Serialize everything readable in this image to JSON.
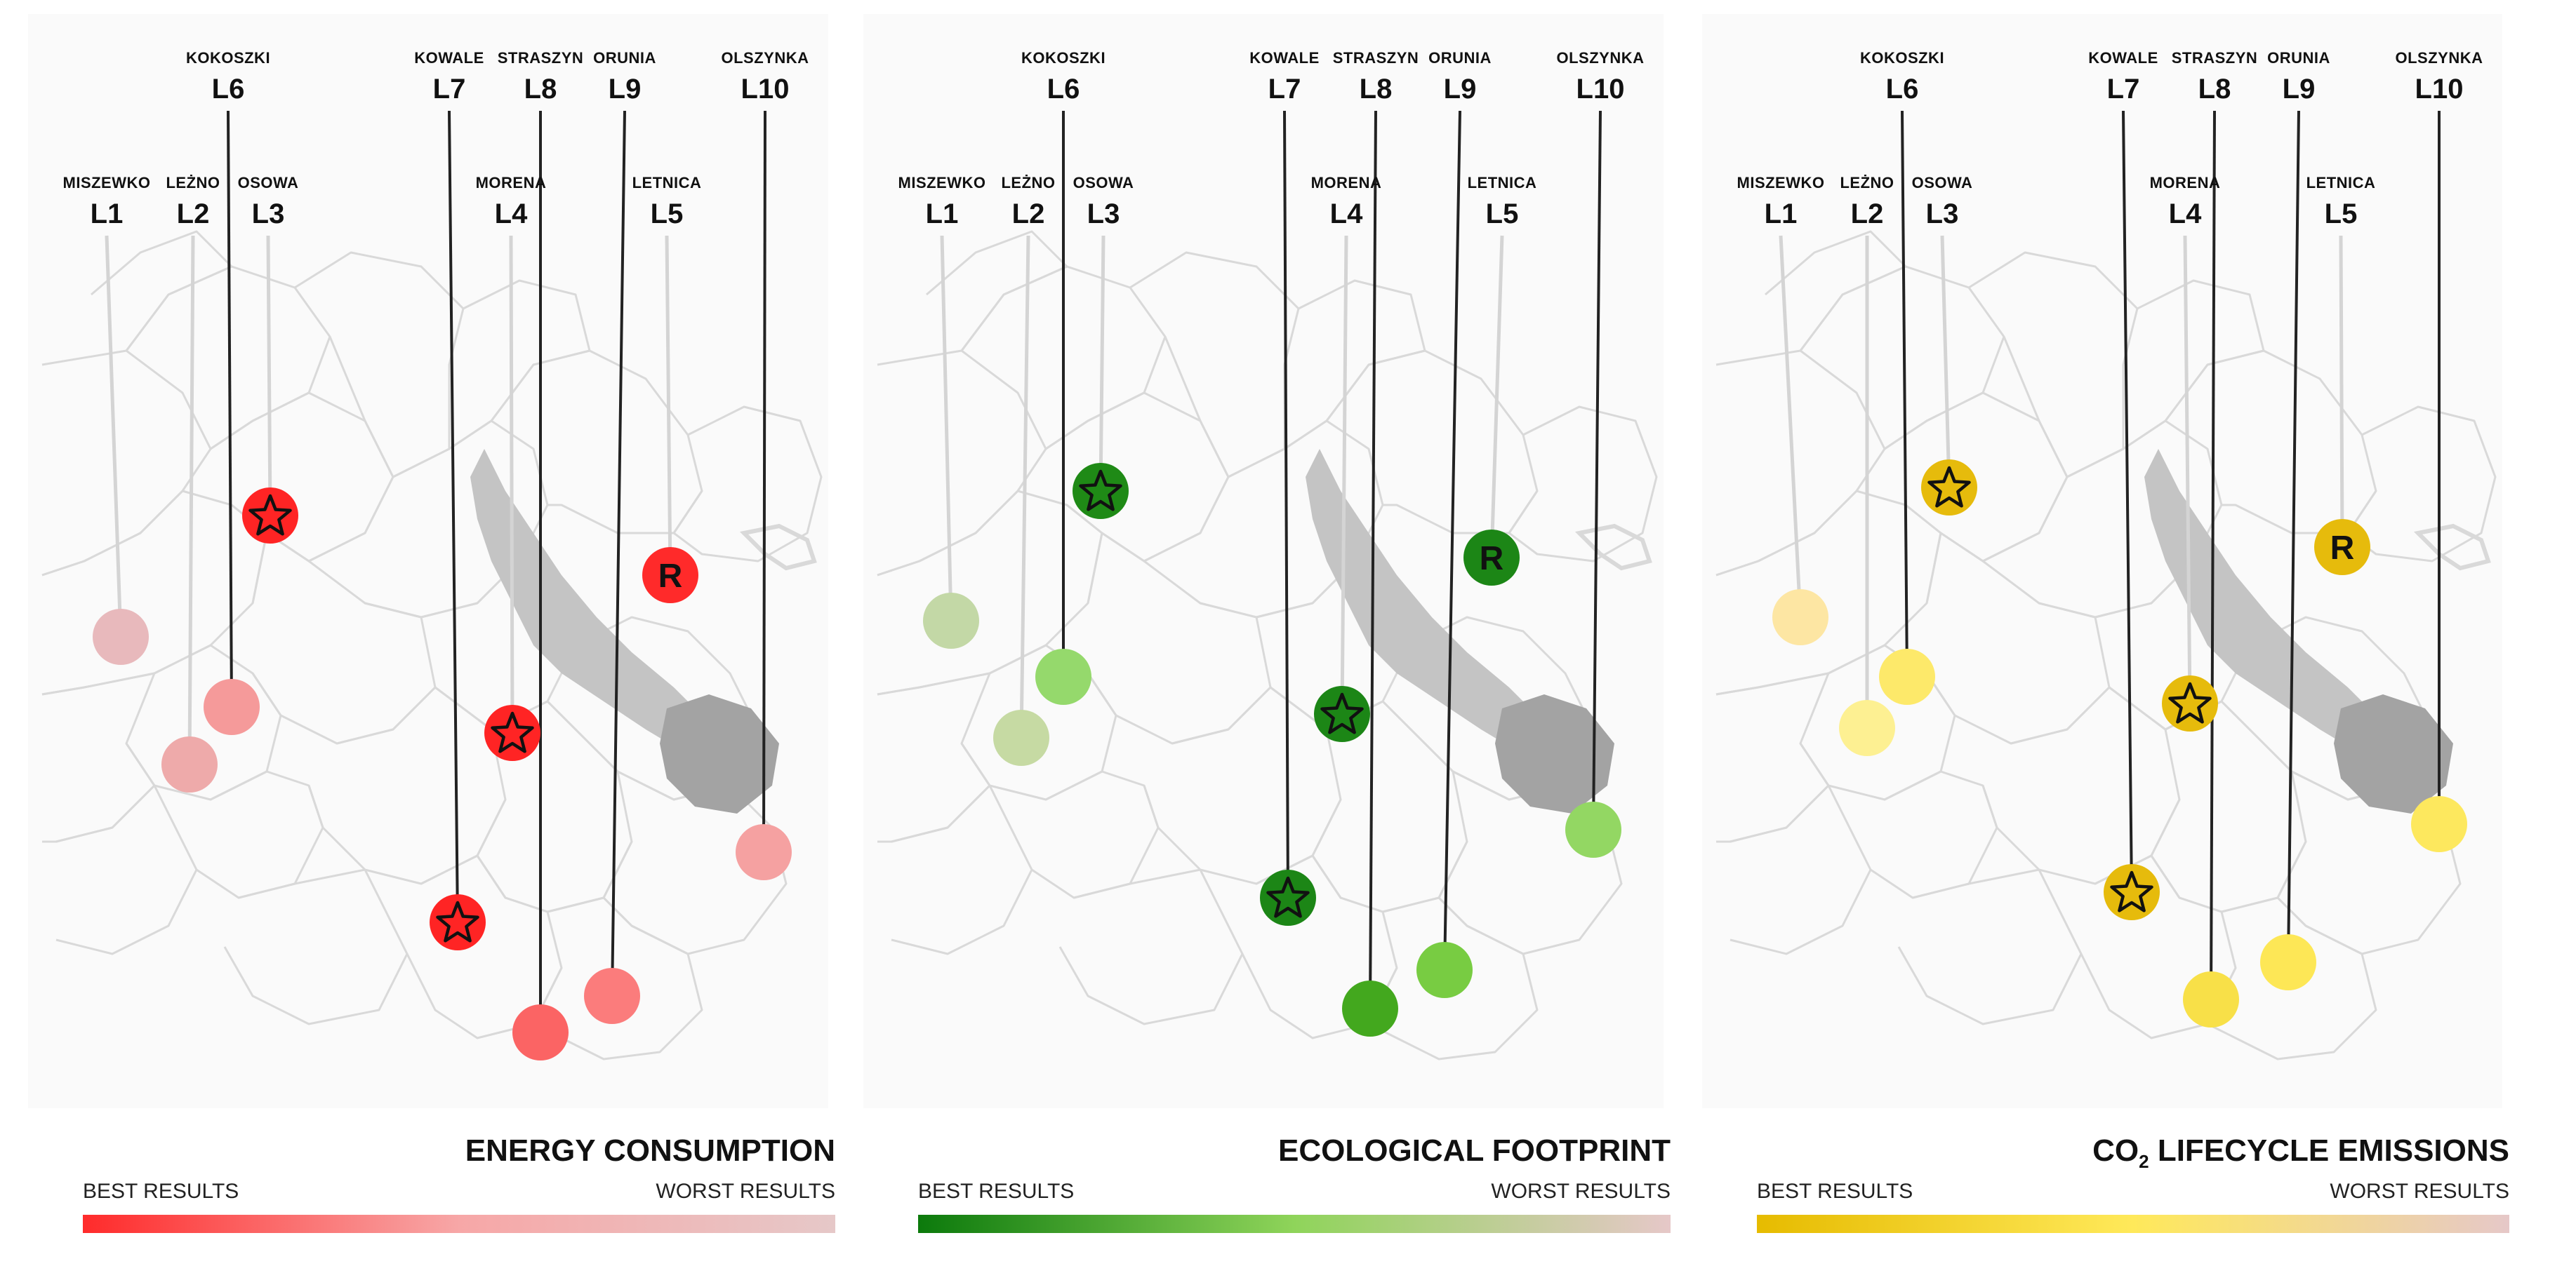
{
  "panels": [
    {
      "id": "energy",
      "title": "ENERGY CONSUMPTION",
      "title_sub": "",
      "title_rest": "",
      "best_label": "BEST RESULTS",
      "worst_label": "WORST RESULTS",
      "gradient": [
        "#ff2b2b",
        "#f7a7a7",
        "#e6c8c8"
      ],
      "markers": [
        {
          "loc": "L1",
          "color": "#e8b9bc",
          "star": false,
          "letter": ""
        },
        {
          "loc": "L2",
          "color": "#eeaaaa",
          "star": false,
          "letter": ""
        },
        {
          "loc": "L3",
          "color": "#ff2424",
          "star": true,
          "letter": ""
        },
        {
          "loc": "L4",
          "color": "#ff2424",
          "star": true,
          "letter": ""
        },
        {
          "loc": "L5",
          "color": "#ff2a2a",
          "star": false,
          "letter": "R"
        },
        {
          "loc": "L6",
          "color": "#f59a9a",
          "star": false,
          "letter": ""
        },
        {
          "loc": "L7",
          "color": "#ff2424",
          "star": true,
          "letter": ""
        },
        {
          "loc": "L8",
          "color": "#fb6464",
          "star": false,
          "letter": ""
        },
        {
          "loc": "L9",
          "color": "#fb7c7c",
          "star": false,
          "letter": ""
        },
        {
          "loc": "L10",
          "color": "#f5a1a1",
          "star": false,
          "letter": ""
        }
      ]
    },
    {
      "id": "ecological",
      "title": "ECOLOGICAL FOOTPRINT",
      "title_sub": "",
      "title_rest": "",
      "best_label": "BEST RESULTS",
      "worst_label": "WORST RESULTS",
      "gradient": [
        "#0c7a0c",
        "#8fd45a",
        "#e6c8c8"
      ],
      "markers": [
        {
          "loc": "L1",
          "color": "#c3d8a6",
          "star": false,
          "letter": ""
        },
        {
          "loc": "L2",
          "color": "#c6daa3",
          "star": false,
          "letter": ""
        },
        {
          "loc": "L3",
          "color": "#1f8a16",
          "star": true,
          "letter": ""
        },
        {
          "loc": "L4",
          "color": "#1c8616",
          "star": true,
          "letter": ""
        },
        {
          "loc": "L5",
          "color": "#1c8616",
          "star": false,
          "letter": "R"
        },
        {
          "loc": "L6",
          "color": "#95d96c",
          "star": false,
          "letter": ""
        },
        {
          "loc": "L7",
          "color": "#1c8616",
          "star": true,
          "letter": ""
        },
        {
          "loc": "L8",
          "color": "#43a81e",
          "star": false,
          "letter": ""
        },
        {
          "loc": "L9",
          "color": "#78cc42",
          "star": false,
          "letter": ""
        },
        {
          "loc": "L10",
          "color": "#93d763",
          "star": false,
          "letter": ""
        }
      ]
    },
    {
      "id": "co2",
      "title": "CO",
      "title_sub": "2",
      "title_rest": " LIFECYCLE EMISSIONS",
      "best_label": "BEST RESULTS",
      "worst_label": "WORST RESULTS",
      "gradient": [
        "#e6bb00",
        "#ffe95a",
        "#e6c8c8"
      ],
      "markers": [
        {
          "loc": "L1",
          "color": "#fde6a3",
          "star": false,
          "letter": ""
        },
        {
          "loc": "L2",
          "color": "#fdf092",
          "star": false,
          "letter": ""
        },
        {
          "loc": "L3",
          "color": "#e6bb0c",
          "star": true,
          "letter": ""
        },
        {
          "loc": "L4",
          "color": "#e6bb0c",
          "star": true,
          "letter": ""
        },
        {
          "loc": "L5",
          "color": "#e6bb0c",
          "star": false,
          "letter": "R"
        },
        {
          "loc": "L6",
          "color": "#fde96a",
          "star": false,
          "letter": ""
        },
        {
          "loc": "L7",
          "color": "#e6bb0c",
          "star": true,
          "letter": ""
        },
        {
          "loc": "L8",
          "color": "#f8e048",
          "star": false,
          "letter": ""
        },
        {
          "loc": "L9",
          "color": "#fde756",
          "star": false,
          "letter": ""
        },
        {
          "loc": "L10",
          "color": "#fde85e",
          "star": false,
          "letter": ""
        }
      ]
    }
  ],
  "locations": [
    {
      "code": "L1",
      "name": "MISZEWKO"
    },
    {
      "code": "L2",
      "name": "LEŻNO"
    },
    {
      "code": "L3",
      "name": "OSOWA"
    },
    {
      "code": "L4",
      "name": "MORENA"
    },
    {
      "code": "L5",
      "name": "LETNICA"
    },
    {
      "code": "L6",
      "name": "KOKOSZKI"
    },
    {
      "code": "L7",
      "name": "KOWALE"
    },
    {
      "code": "L8",
      "name": "STRASZYN"
    },
    {
      "code": "L9",
      "name": "ORUNIA"
    },
    {
      "code": "L10",
      "name": "OLSZYNKA"
    }
  ],
  "colors": {
    "map_lines": "#d9d9d9",
    "map_bg": "#f3f3f3",
    "river": "#c4c4c4",
    "old_town": "#a3a3a3",
    "leader_dark": "#222222",
    "leader_light": "#d4d4d4"
  }
}
